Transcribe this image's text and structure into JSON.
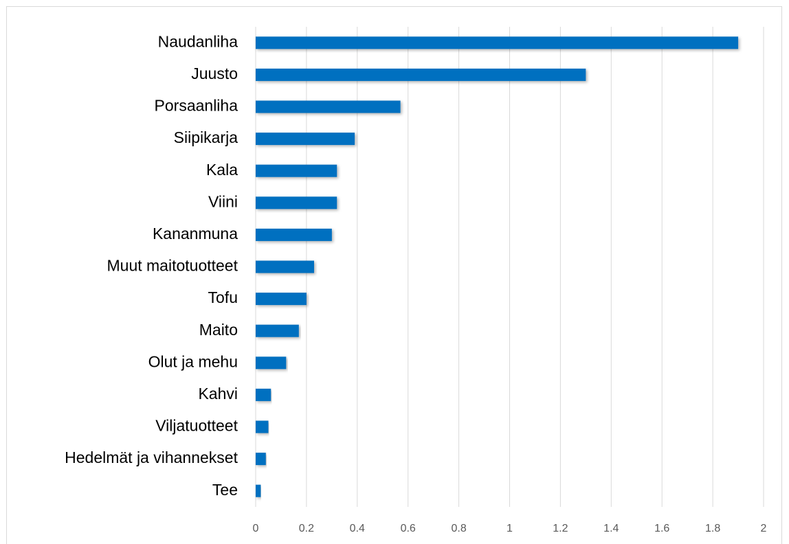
{
  "chart_data": {
    "type": "bar",
    "orientation": "horizontal",
    "categories": [
      "Naudanliha",
      "Juusto",
      "Porsaanliha",
      "Siipikarja",
      "Kala",
      "Viini",
      "Kananmuna",
      "Muut maitotuotteet",
      "Tofu",
      "Maito",
      "Olut ja mehu",
      "Kahvi",
      "Viljatuotteet",
      "Hedelmät ja vihannekset",
      "Tee"
    ],
    "values": [
      1.9,
      1.3,
      0.57,
      0.39,
      0.32,
      0.32,
      0.3,
      0.23,
      0.2,
      0.17,
      0.12,
      0.06,
      0.05,
      0.04,
      0.02
    ],
    "color": "#0070c0",
    "xlim": [
      0,
      2
    ],
    "xticks": [
      0,
      0.2,
      0.4,
      0.6,
      0.8,
      1,
      1.2,
      1.4,
      1.6,
      1.8,
      2
    ],
    "grid": true
  }
}
